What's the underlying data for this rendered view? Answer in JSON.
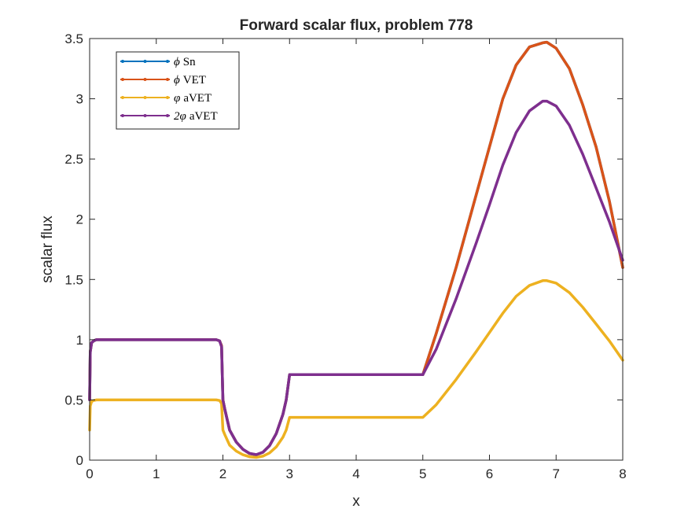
{
  "chart_data": {
    "type": "line",
    "title": "Forward scalar flux, problem 778",
    "xlabel": "x",
    "ylabel": "scalar flux",
    "xlim": [
      0,
      8
    ],
    "ylim": [
      0,
      3.5
    ],
    "xticks": [
      0,
      1,
      2,
      3,
      4,
      5,
      6,
      7,
      8
    ],
    "xtick_labels": [
      "0",
      "1",
      "2",
      "3",
      "4",
      "5",
      "6",
      "7",
      "8"
    ],
    "yticks": [
      0,
      0.5,
      1,
      1.5,
      2,
      2.5,
      3,
      3.5
    ],
    "ytick_labels": [
      "0",
      "0.5",
      "1",
      "1.5",
      "2",
      "2.5",
      "3",
      "3.5"
    ],
    "grid": false,
    "legend_position": "top-left",
    "series": [
      {
        "name": "ϕ Sn",
        "legend_symbol": "ϕ",
        "legend_text": "Sn",
        "color": "#0072BD",
        "x": [
          0,
          0.01,
          0.03,
          0.06,
          0.1,
          0.2,
          0.5,
          1.0,
          1.5,
          1.9,
          1.95,
          1.98,
          2.0,
          2.03,
          2.1,
          2.2,
          2.3,
          2.4,
          2.5,
          2.6,
          2.7,
          2.8,
          2.9,
          2.95,
          3.0,
          3.5,
          4.0,
          4.5,
          5.0,
          5.2,
          5.5,
          5.8,
          6.0,
          6.2,
          6.4,
          6.6,
          6.8,
          6.86,
          7.0,
          7.2,
          7.4,
          7.6,
          7.8,
          8.0
        ],
        "y": [
          0.5,
          0.9,
          0.975,
          0.99,
          1.0,
          1.0,
          1.0,
          1.0,
          1.0,
          1.0,
          0.99,
          0.95,
          0.5,
          0.42,
          0.25,
          0.15,
          0.09,
          0.055,
          0.045,
          0.065,
          0.12,
          0.22,
          0.38,
          0.5,
          0.71,
          0.71,
          0.71,
          0.71,
          0.71,
          1.05,
          1.6,
          2.2,
          2.6,
          3.0,
          3.28,
          3.43,
          3.465,
          3.47,
          3.42,
          3.25,
          2.95,
          2.6,
          2.15,
          1.6
        ]
      },
      {
        "name": "ϕ VET",
        "legend_symbol": "ϕ",
        "legend_text": "VET",
        "color": "#D95319",
        "x": [
          0,
          0.01,
          0.03,
          0.06,
          0.1,
          0.2,
          0.5,
          1.0,
          1.5,
          1.9,
          1.95,
          1.98,
          2.0,
          2.03,
          2.1,
          2.2,
          2.3,
          2.4,
          2.5,
          2.6,
          2.7,
          2.8,
          2.9,
          2.95,
          3.0,
          3.5,
          4.0,
          4.5,
          5.0,
          5.2,
          5.5,
          5.8,
          6.0,
          6.2,
          6.4,
          6.6,
          6.8,
          6.86,
          7.0,
          7.2,
          7.4,
          7.6,
          7.8,
          8.0
        ],
        "y": [
          0.5,
          0.9,
          0.975,
          0.99,
          1.0,
          1.0,
          1.0,
          1.0,
          1.0,
          1.0,
          0.99,
          0.95,
          0.5,
          0.42,
          0.25,
          0.15,
          0.09,
          0.055,
          0.045,
          0.065,
          0.12,
          0.22,
          0.38,
          0.5,
          0.71,
          0.71,
          0.71,
          0.71,
          0.71,
          1.05,
          1.6,
          2.2,
          2.6,
          3.0,
          3.28,
          3.43,
          3.465,
          3.47,
          3.42,
          3.25,
          2.95,
          2.6,
          2.15,
          1.6
        ]
      },
      {
        "name": "φ aVET",
        "legend_symbol": "φ",
        "legend_text": "aVET",
        "color": "#EDB120",
        "x": [
          0,
          0.01,
          0.03,
          0.06,
          0.1,
          0.2,
          0.5,
          1.0,
          1.5,
          1.9,
          1.95,
          1.98,
          2.0,
          2.03,
          2.1,
          2.2,
          2.3,
          2.4,
          2.5,
          2.6,
          2.7,
          2.8,
          2.9,
          2.95,
          3.0,
          3.5,
          4.0,
          4.5,
          5.0,
          5.2,
          5.5,
          5.8,
          6.0,
          6.2,
          6.4,
          6.6,
          6.8,
          6.86,
          7.0,
          7.2,
          7.4,
          7.6,
          7.8,
          8.0
        ],
        "y": [
          0.25,
          0.45,
          0.487,
          0.495,
          0.5,
          0.5,
          0.5,
          0.5,
          0.5,
          0.5,
          0.495,
          0.47,
          0.25,
          0.21,
          0.125,
          0.075,
          0.045,
          0.028,
          0.023,
          0.033,
          0.06,
          0.11,
          0.19,
          0.25,
          0.355,
          0.355,
          0.355,
          0.355,
          0.355,
          0.46,
          0.67,
          0.9,
          1.06,
          1.22,
          1.36,
          1.45,
          1.49,
          1.49,
          1.47,
          1.39,
          1.27,
          1.13,
          0.99,
          0.83
        ]
      },
      {
        "name": "2φ aVET",
        "legend_symbol": "2φ",
        "legend_text": "aVET",
        "color": "#7E2F8E",
        "x": [
          0,
          0.01,
          0.03,
          0.06,
          0.1,
          0.2,
          0.5,
          1.0,
          1.5,
          1.9,
          1.95,
          1.98,
          2.0,
          2.03,
          2.1,
          2.2,
          2.3,
          2.4,
          2.5,
          2.6,
          2.7,
          2.8,
          2.9,
          2.95,
          3.0,
          3.5,
          4.0,
          4.5,
          5.0,
          5.2,
          5.5,
          5.8,
          6.0,
          6.2,
          6.4,
          6.6,
          6.8,
          6.86,
          7.0,
          7.2,
          7.4,
          7.6,
          7.8,
          8.0
        ],
        "y": [
          0.5,
          0.9,
          0.975,
          0.99,
          1.0,
          1.0,
          1.0,
          1.0,
          1.0,
          1.0,
          0.99,
          0.94,
          0.5,
          0.42,
          0.25,
          0.15,
          0.09,
          0.056,
          0.046,
          0.066,
          0.12,
          0.22,
          0.38,
          0.5,
          0.71,
          0.71,
          0.71,
          0.71,
          0.71,
          0.92,
          1.34,
          1.8,
          2.12,
          2.45,
          2.72,
          2.9,
          2.98,
          2.98,
          2.94,
          2.78,
          2.54,
          2.26,
          1.98,
          1.66
        ]
      }
    ]
  }
}
